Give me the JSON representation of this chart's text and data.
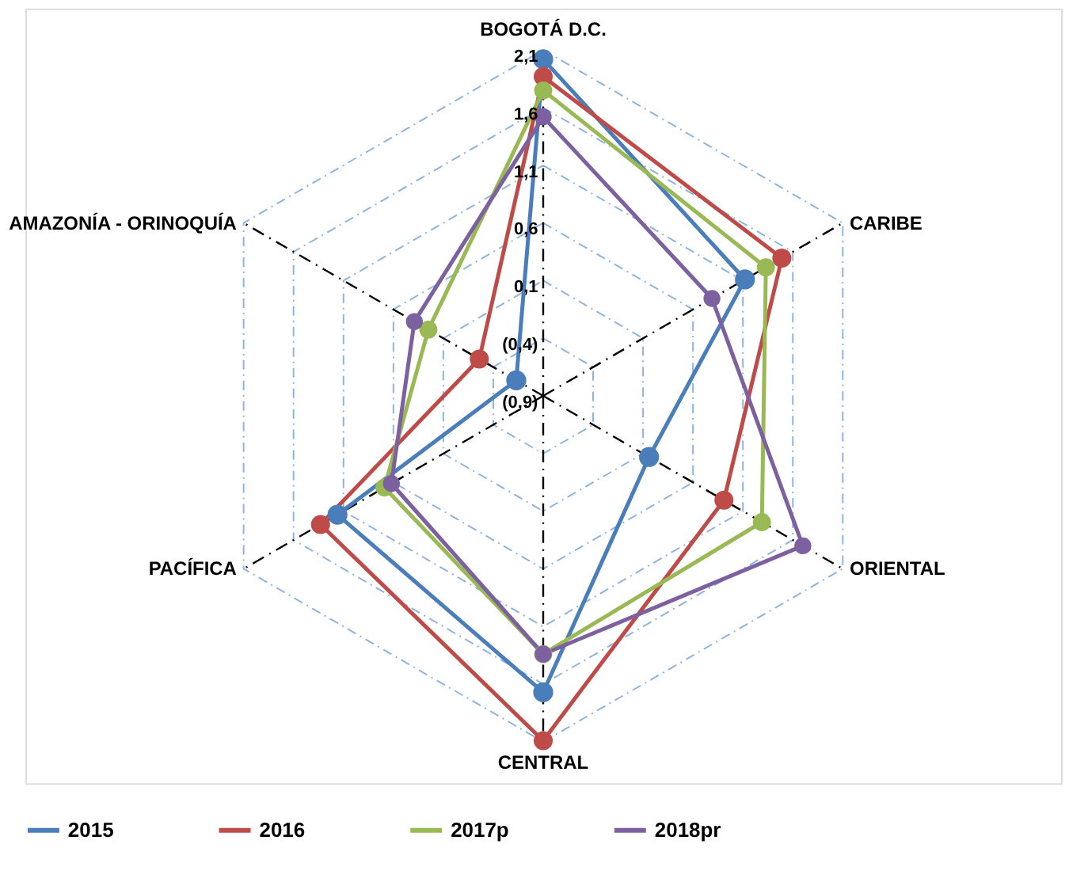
{
  "chart_data": {
    "type": "radar",
    "categories": [
      "BOGOTÁ D.C.",
      "CARIBE",
      "ORIENTAL",
      "CENTRAL",
      "PACÍFICA",
      "AMAZONÍA - ORINOQUÍA"
    ],
    "series": [
      {
        "name": "2015",
        "color": "#4a7ebb",
        "values": [
          2.02,
          1.12,
          0.16,
          1.67,
          1.16,
          -0.63
        ]
      },
      {
        "name": "2016",
        "color": "#be4b48",
        "values": [
          1.87,
          1.49,
          0.91,
          2.09,
          1.33,
          -0.26
        ]
      },
      {
        "name": "2017p",
        "color": "#98b954",
        "values": [
          1.75,
          1.33,
          1.29,
          1.34,
          0.69,
          0.25
        ]
      },
      {
        "name": "2018pr",
        "color": "#7d60a0",
        "values": [
          1.52,
          0.79,
          1.7,
          1.34,
          0.62,
          0.39
        ]
      }
    ],
    "ylim": [
      -0.9,
      2.1
    ],
    "yticks": [
      {
        "value": -0.9,
        "label": "(0,9)"
      },
      {
        "value": -0.4,
        "label": "(0,4)"
      },
      {
        "value": 0.1,
        "label": "0,1"
      },
      {
        "value": 0.6,
        "label": "0,6"
      },
      {
        "value": 1.1,
        "label": "1,1"
      },
      {
        "value": 1.6,
        "label": "1,6"
      },
      {
        "value": 2.1,
        "label": "2,1"
      }
    ],
    "grid": true,
    "marker": "circle",
    "legend": "bottom"
  }
}
